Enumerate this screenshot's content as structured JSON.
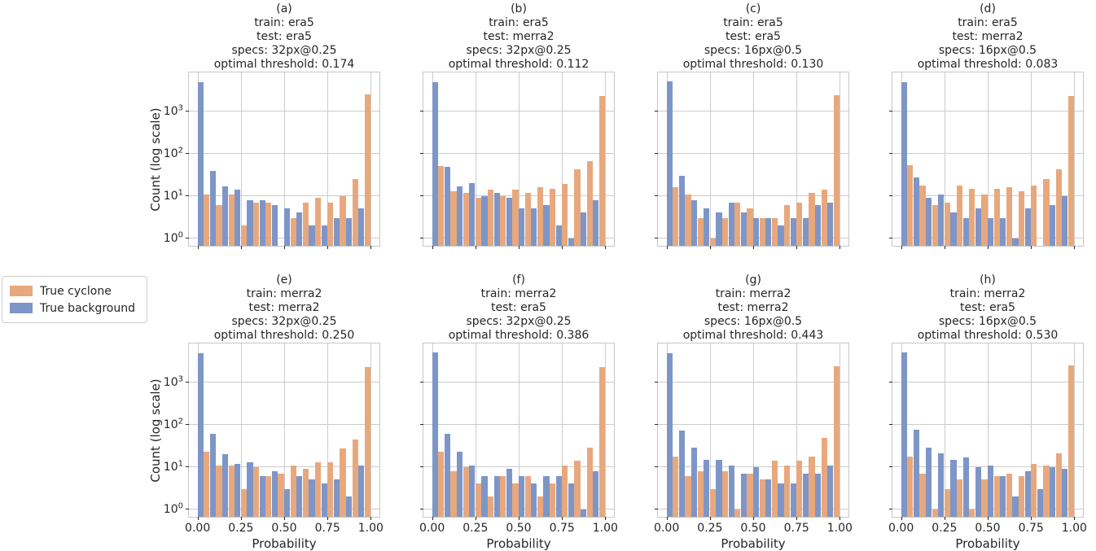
{
  "legend": {
    "items": [
      {
        "label": "True cyclone",
        "color": "#e8a87d"
      },
      {
        "label": "True background",
        "color": "#7d96c7"
      }
    ]
  },
  "axes": {
    "y_label": "Count (log scale)",
    "x_label": "Probability",
    "x_tick_labels": [
      "0.00",
      "0.25",
      "0.50",
      "0.75",
      "1.00"
    ],
    "y_tick_base": "10",
    "y_tick_exponents": [
      "0",
      "1",
      "2",
      "3"
    ]
  },
  "chart_data": {
    "type": "bar",
    "subtype": "dodged-histogram",
    "layout": "2 rows x 4 cols",
    "grid": "on",
    "y_scale": "log",
    "ylim": [
      0.66,
      8500
    ],
    "y_ticks": [
      1,
      10,
      100,
      1000
    ],
    "x_ticks": [
      0,
      0.25,
      0.5,
      0.75,
      1.0
    ],
    "n_bins": 14,
    "bin_range": [
      0,
      1
    ],
    "legend_position": "left-middle",
    "series_names": [
      "True background",
      "True cyclone"
    ],
    "series_colors": {
      "True background": "#7d96c7",
      "True cyclone": "#e8a87d"
    },
    "panels": [
      {
        "label": "(a)",
        "train": "era5",
        "test": "era5",
        "specs": "32px@0.25",
        "optimal_threshold": "0.174",
        "title_lines": [
          "(a)",
          "train: era5",
          "test: era5",
          "specs: 32px@0.25",
          "optimal threshold: 0.174"
        ],
        "true_background": [
          5000,
          40,
          17,
          14,
          8,
          8,
          6,
          5,
          4,
          2,
          2,
          3,
          3,
          5
        ],
        "true_cyclone": [
          11,
          6,
          11,
          2,
          7,
          7,
          0,
          3,
          7,
          9,
          7,
          10,
          25,
          2600
        ]
      },
      {
        "label": "(b)",
        "train": "era5",
        "test": "merra2",
        "specs": "32px@0.25",
        "optimal_threshold": "0.112",
        "title_lines": [
          "(b)",
          "train: era5",
          "test: merra2",
          "specs: 32px@0.25",
          "optimal threshold: 0.112"
        ],
        "true_background": [
          5000,
          50,
          17,
          20,
          10,
          12,
          9,
          5,
          5,
          6,
          2,
          1,
          4,
          8
        ],
        "true_cyclone": [
          52,
          13,
          12,
          9,
          14,
          10,
          14,
          12,
          16,
          15,
          19,
          44,
          67,
          2400
        ]
      },
      {
        "label": "(c)",
        "train": "era5",
        "test": "era5",
        "specs": "16px@0.5",
        "optimal_threshold": "0.130",
        "title_lines": [
          "(c)",
          "train: era5",
          "test: era5",
          "specs: 16px@0.5",
          "optimal threshold: 0.130"
        ],
        "true_background": [
          5200,
          30,
          8,
          5,
          4,
          7,
          4,
          3,
          3,
          2,
          3,
          3,
          6,
          7
        ],
        "true_cyclone": [
          16,
          11,
          3,
          1,
          3,
          7,
          5,
          3,
          3,
          6,
          7,
          12,
          14,
          2500
        ]
      },
      {
        "label": "(d)",
        "train": "era5",
        "test": "merra2",
        "specs": "16px@0.5",
        "optimal_threshold": "0.083",
        "title_lines": [
          "(d)",
          "train: era5",
          "test: merra2",
          "specs: 16px@0.5",
          "optimal threshold: 0.083"
        ],
        "true_background": [
          5000,
          27,
          9,
          11,
          4,
          3,
          5,
          3,
          3,
          1,
          5,
          0,
          6,
          10
        ],
        "true_cyclone": [
          54,
          18,
          6,
          7,
          18,
          15,
          11,
          15,
          16,
          13,
          18,
          25,
          43,
          2350
        ]
      },
      {
        "label": "(e)",
        "train": "merra2",
        "test": "merra2",
        "specs": "32px@0.25",
        "optimal_threshold": "0.250",
        "title_lines": [
          "(e)",
          "train: merra2",
          "test: merra2",
          "specs: 32px@0.25",
          "optimal threshold: 0.250"
        ],
        "true_background": [
          5000,
          62,
          20,
          12,
          13,
          6,
          8,
          3,
          6,
          5,
          4,
          5,
          2,
          11
        ],
        "true_cyclone": [
          23,
          11,
          11,
          3,
          10,
          6,
          7,
          11,
          9,
          13,
          13,
          28,
          45,
          2400
        ]
      },
      {
        "label": "(f)",
        "train": "merra2",
        "test": "era5",
        "specs": "32px@0.25",
        "optimal_threshold": "0.386",
        "title_lines": [
          "(f)",
          "train: merra2",
          "test: era5",
          "specs: 32px@0.25",
          "optimal threshold: 0.386"
        ],
        "true_background": [
          5200,
          62,
          23,
          11,
          6,
          6,
          9,
          6,
          4,
          6,
          6,
          4,
          1,
          8
        ],
        "true_cyclone": [
          23,
          8,
          10,
          4,
          2,
          6,
          4,
          6,
          2,
          4,
          11,
          14,
          29,
          2400
        ]
      },
      {
        "label": "(g)",
        "train": "merra2",
        "test": "merra2",
        "specs": "16px@0.5",
        "optimal_threshold": "0.443",
        "title_lines": [
          "(g)",
          "train: merra2",
          "test: merra2",
          "specs: 16px@0.5",
          "optimal threshold: 0.443"
        ],
        "true_background": [
          5000,
          72,
          29,
          15,
          15,
          11,
          7,
          10,
          5,
          4,
          4,
          7,
          7,
          11
        ],
        "true_cyclone": [
          18,
          6,
          8,
          3,
          8,
          1,
          7,
          5,
          14,
          11,
          14,
          18,
          50,
          2500
        ]
      },
      {
        "label": "(h)",
        "train": "merra2",
        "test": "era5",
        "specs": "16px@0.5",
        "optimal_threshold": "0.530",
        "title_lines": [
          "(h)",
          "train: merra2",
          "test: era5",
          "specs: 16px@0.5",
          "optimal threshold: 0.530"
        ],
        "true_background": [
          5200,
          77,
          29,
          21,
          15,
          17,
          10,
          11,
          6,
          2,
          8,
          3,
          10,
          9
        ],
        "true_cyclone": [
          18,
          7,
          1,
          3,
          5,
          1,
          5,
          6,
          7,
          6,
          12,
          11,
          21,
          2550
        ]
      }
    ]
  }
}
